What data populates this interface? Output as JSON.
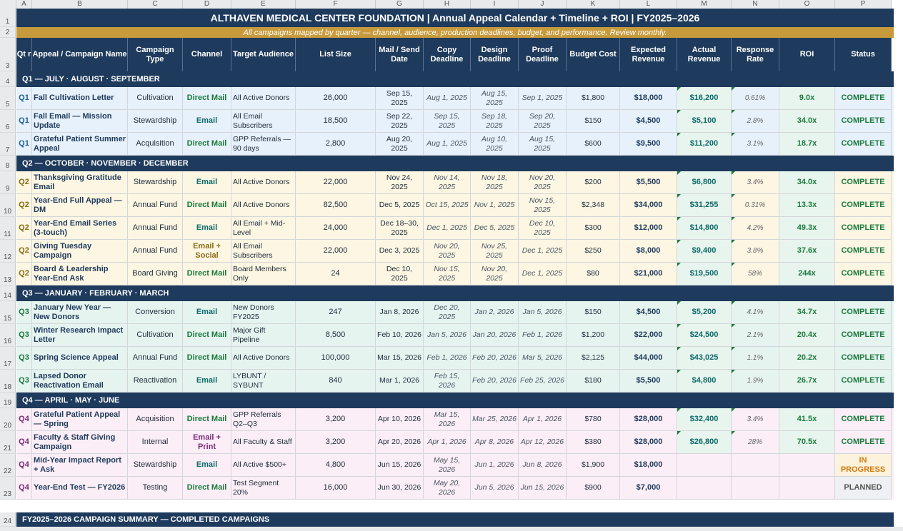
{
  "columns": [
    "A",
    "B",
    "C",
    "D",
    "E",
    "F",
    "G",
    "H",
    "I",
    "J",
    "K",
    "L",
    "M",
    "N",
    "O",
    "P"
  ],
  "title": "ALTHAVEN MEDICAL CENTER FOUNDATION  |  Annual Appeal Calendar + Timeline  + ROI |  FY2025–2026",
  "subtitle": "All campaigns mapped by quarter — channel, audience, production deadlines, budget, and performance. Review monthly.",
  "headers": [
    "Qt r",
    "Appeal / Campaign Name",
    "Campaign Type",
    "Channel",
    "Target Audience",
    "List Size",
    "Mail / Send Date",
    "Copy Deadline",
    "Design Deadline",
    "Proof Deadline",
    "Budget Cost",
    "Expected Revenue",
    "Actual Revenue",
    "Response Rate",
    "ROI",
    "Status"
  ],
  "row_numbers": [
    "1",
    "2",
    "3",
    "4",
    "5",
    "6",
    "7",
    "8",
    "9",
    "10",
    "11",
    "12",
    "13",
    "14",
    "15",
    "16",
    "17",
    "18",
    "19",
    "20",
    "21",
    "22",
    "23",
    "24"
  ],
  "colors": {
    "navy": "#1e3a5c",
    "gold": "#c79a3c",
    "green": "#1a7a3c",
    "teal": "#0e6a6a",
    "olive": "#8a6a12",
    "purple": "#7a2a7a",
    "orange": "#d07a10"
  },
  "quarters": [
    {
      "band": "Q1 — JULY · AUGUST · SEPTEMBER",
      "tint": "#e7f1fb",
      "rows": [
        {
          "qtr": "Q1",
          "name": "Fall Cultivation Letter",
          "type": "Cultivation",
          "channel": "Direct Mail",
          "audience": "All Active Donors",
          "list": "26,000",
          "send": "Sep 15, 2025",
          "copy": "Aug 1, 2025",
          "design": "Aug 15, 2025",
          "proof": "Sep 1, 2025",
          "budget": "$1,800",
          "expected": "$18,000",
          "actual": "$16,200",
          "response": "0.61%",
          "roi": "9.0x",
          "status": "COMPLETE"
        },
        {
          "qtr": "Q1",
          "name": "Fall Email — Mission Update",
          "type": "Stewardship",
          "channel": "Email",
          "audience": "All Email Subscribers",
          "list": "18,500",
          "send": "Sep 22, 2025",
          "copy": "Sep 15, 2025",
          "design": "Sep 18, 2025",
          "proof": "Sep 20, 2025",
          "budget": "$150",
          "expected": "$4,500",
          "actual": "$5,100",
          "response": "2.8%",
          "roi": "34.0x",
          "status": "COMPLETE"
        },
        {
          "qtr": "Q1",
          "name": "Grateful Patient Summer Appeal",
          "type": "Acquisition",
          "channel": "Direct Mail",
          "audience": "GPP Referrals — 90 days",
          "list": "2,800",
          "send": "Aug 20, 2025",
          "copy": "Aug 1, 2025",
          "design": "Aug 10, 2025",
          "proof": "Aug 15, 2025",
          "budget": "$600",
          "expected": "$9,500",
          "actual": "$11,200",
          "response": "3.1%",
          "roi": "18.7x",
          "status": "COMPLETE"
        }
      ]
    },
    {
      "band": "Q2 — OCTOBER · NOVEMBER · DECEMBER",
      "tint": "#fcf6e3",
      "rows": [
        {
          "qtr": "Q2",
          "name": "Thanksgiving Gratitude Email",
          "type": "Stewardship",
          "channel": "Email",
          "audience": "All Active Donors",
          "list": "22,000",
          "send": "Nov 24, 2025",
          "copy": "Nov 14, 2025",
          "design": "Nov 18, 2025",
          "proof": "Nov 20, 2025",
          "budget": "$200",
          "expected": "$5,500",
          "actual": "$6,800",
          "response": "3.4%",
          "roi": "34.0x",
          "status": "COMPLETE"
        },
        {
          "qtr": "Q2",
          "name": "Year-End Full Appeal — DM",
          "type": "Annual Fund",
          "channel": "Direct Mail",
          "audience": "All Active Donors",
          "list": "82,500",
          "send": "Dec 5, 2025",
          "copy": "Oct 15, 2025",
          "design": "Nov 1, 2025",
          "proof": "Nov 15, 2025",
          "budget": "$2,348",
          "expected": "$34,000",
          "actual": "$31,255",
          "response": "0.31%",
          "roi": "13.3x",
          "status": "COMPLETE"
        },
        {
          "qtr": "Q2",
          "name": "Year-End Email Series (3-touch)",
          "type": "Annual Fund",
          "channel": "Email",
          "audience": "All Email + Mid-Level",
          "list": "24,000",
          "send": "Dec 18–30, 2025",
          "copy": "Dec 1, 2025",
          "design": "Dec 5, 2025",
          "proof": "Dec 10, 2025",
          "budget": "$300",
          "expected": "$12,000",
          "actual": "$14,800",
          "response": "4.2%",
          "roi": "49.3x",
          "status": "COMPLETE"
        },
        {
          "qtr": "Q2",
          "name": "Giving Tuesday Campaign",
          "type": "Annual Fund",
          "channel": "Email + Social",
          "audience": "All Email Subscribers",
          "list": "22,000",
          "send": "Dec 3, 2025",
          "copy": "Nov 20, 2025",
          "design": "Nov 25, 2025",
          "proof": "Dec 1, 2025",
          "budget": "$250",
          "expected": "$8,000",
          "actual": "$9,400",
          "response": "3.8%",
          "roi": "37.6x",
          "status": "COMPLETE"
        },
        {
          "qtr": "Q2",
          "name": "Board & Leadership Year-End Ask",
          "type": "Board Giving",
          "channel": "Direct Mail",
          "audience": "Board Members Only",
          "list": "24",
          "send": "Dec 10, 2025",
          "copy": "Nov 15, 2025",
          "design": "Nov 20, 2025",
          "proof": "Dec 1, 2025",
          "budget": "$80",
          "expected": "$21,000",
          "actual": "$19,500",
          "response": "58%",
          "roi": "244x",
          "status": "COMPLETE"
        }
      ]
    },
    {
      "band": "Q3 — JANUARY · FEBRUARY · MARCH",
      "tint": "#e6f4f0",
      "rows": [
        {
          "qtr": "Q3",
          "name": "January New Year — New Donors",
          "type": "Conversion",
          "channel": "Email",
          "audience": "New Donors FY2025",
          "list": "247",
          "send": "Jan 8, 2026",
          "copy": "Dec 20, 2025",
          "design": "Jan 2, 2026",
          "proof": "Jan 5, 2026",
          "budget": "$150",
          "expected": "$4,500",
          "actual": "$5,200",
          "response": "4.1%",
          "roi": "34.7x",
          "status": "COMPLETE"
        },
        {
          "qtr": "Q3",
          "name": "Winter Research Impact Letter",
          "type": "Cultivation",
          "channel": "Direct Mail",
          "audience": "Major Gift Pipeline",
          "list": "8,500",
          "send": "Feb 10, 2026",
          "copy": "Jan 5, 2026",
          "design": "Jan 20, 2026",
          "proof": "Feb 1, 2026",
          "budget": "$1,200",
          "expected": "$22,000",
          "actual": "$24,500",
          "response": "2.1%",
          "roi": "20.4x",
          "status": "COMPLETE"
        },
        {
          "qtr": "Q3",
          "name": "Spring Science Appeal",
          "type": "Annual Fund",
          "channel": "Direct Mail",
          "audience": "All Active Donors",
          "list": "100,000",
          "send": "Mar 15, 2026",
          "copy": "Feb 1, 2026",
          "design": "Feb 20, 2026",
          "proof": "Mar 5, 2026",
          "budget": "$2,125",
          "expected": "$44,000",
          "actual": "$43,025",
          "response": "1.1%",
          "roi": "20.2x",
          "status": "COMPLETE"
        },
        {
          "qtr": "Q3",
          "name": "Lapsed Donor Reactivation Email",
          "type": "Reactivation",
          "channel": "Email",
          "audience": "LYBUNT / SYBUNT",
          "list": "840",
          "send": "Mar 1, 2026",
          "copy": "Feb 15, 2026",
          "design": "Feb 20, 2026",
          "proof": "Feb 25, 2026",
          "budget": "$180",
          "expected": "$5,500",
          "actual": "$4,800",
          "response": "1.9%",
          "roi": "26.7x",
          "status": "COMPLETE"
        }
      ]
    },
    {
      "band": "Q4 — APRIL · MAY · JUNE",
      "tint": "#fbeef6",
      "rows": [
        {
          "qtr": "Q4",
          "name": "Grateful Patient Appeal — Spring",
          "type": "Acquisition",
          "channel": "Direct Mail",
          "audience": "GPP Referrals Q2–Q3",
          "list": "3,200",
          "send": "Apr 10, 2026",
          "copy": "Mar 15, 2026",
          "design": "Mar 25, 2026",
          "proof": "Apr 1, 2026",
          "budget": "$780",
          "expected": "$28,000",
          "actual": "$32,400",
          "response": "3.4%",
          "roi": "41.5x",
          "status": "COMPLETE"
        },
        {
          "qtr": "Q4",
          "name": "Faculty & Staff Giving Campaign",
          "type": "Internal",
          "channel": "Email + Print",
          "audience": "All Faculty & Staff",
          "list": "3,200",
          "send": "Apr 20, 2026",
          "copy": "Apr 1, 2026",
          "design": "Apr 8, 2026",
          "proof": "Apr 12, 2026",
          "budget": "$380",
          "expected": "$28,000",
          "actual": "$26,800",
          "response": "28%",
          "roi": "70.5x",
          "status": "COMPLETE"
        },
        {
          "qtr": "Q4",
          "name": "Mid-Year Impact Report + Ask",
          "type": "Stewardship",
          "channel": "Email",
          "audience": "All Active $500+",
          "list": "4,800",
          "send": "Jun 15, 2026",
          "copy": "May 15, 2026",
          "design": "Jun 1, 2026",
          "proof": "Jun 8, 2026",
          "budget": "$1,900",
          "expected": "$18,000",
          "actual": "",
          "response": "",
          "roi": "",
          "status": "IN PROGRESS"
        },
        {
          "qtr": "Q4",
          "name": "Year-End Test — FY2026",
          "type": "Testing",
          "channel": "Direct Mail",
          "audience": "Test Segment 20%",
          "list": "16,000",
          "send": "Jun 30, 2026",
          "copy": "May 20, 2026",
          "design": "Jun 5, 2026",
          "proof": "Jun 15, 2026",
          "budget": "$900",
          "expected": "$7,000",
          "actual": "",
          "response": "",
          "roi": "",
          "status": "PLANNED"
        }
      ]
    }
  ],
  "summary": "FY2025–2026 CAMPAIGN SUMMARY — COMPLETED CAMPAIGNS"
}
